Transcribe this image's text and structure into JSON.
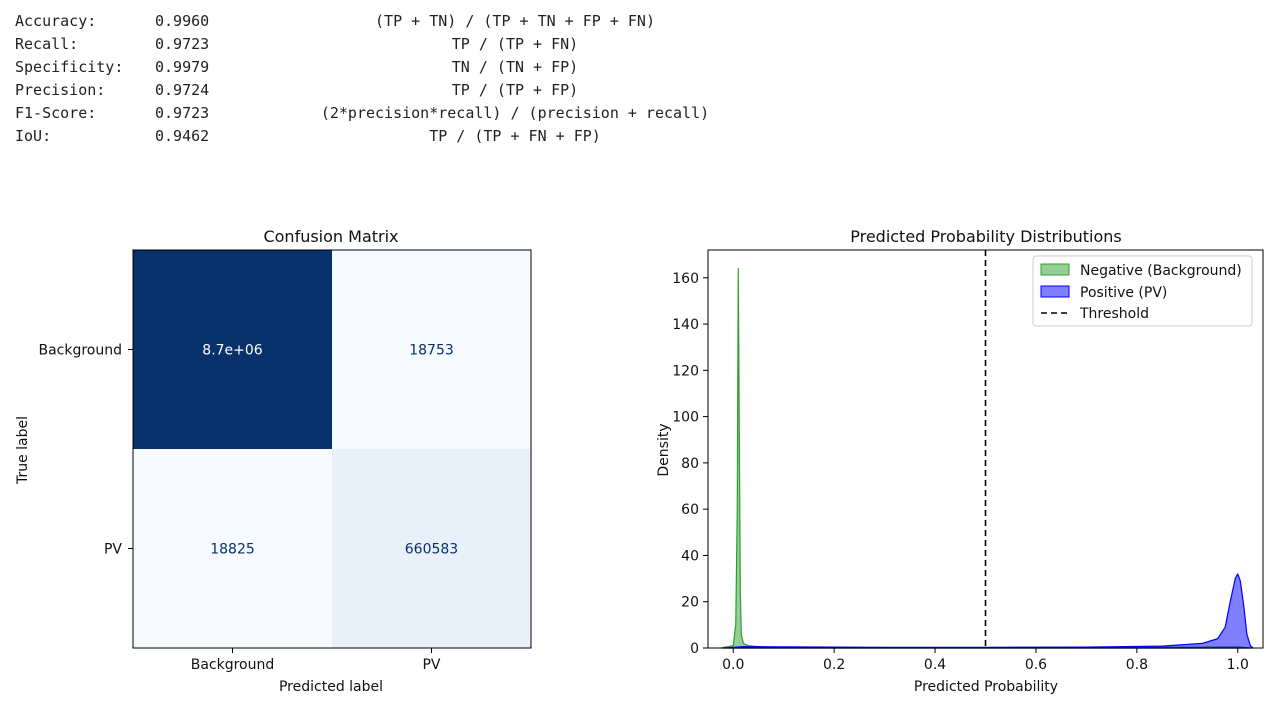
{
  "metrics": [
    {
      "name": "Accuracy:",
      "value": "0.9960",
      "formula": "(TP + TN) / (TP + TN + FP + FN)"
    },
    {
      "name": "Recall:",
      "value": "0.9723",
      "formula": "TP / (TP + FN)"
    },
    {
      "name": "Specificity:",
      "value": "0.9979",
      "formula": "TN / (TN + FP)"
    },
    {
      "name": "Precision:",
      "value": "0.9724",
      "formula": "TP / (TP + FP)"
    },
    {
      "name": "F1-Score:",
      "value": "0.9723",
      "formula": "(2*precision*recall) / (precision + recall)"
    },
    {
      "name": "IoU:",
      "value": "0.9462",
      "formula": "TP / (TP + FN + FP)"
    }
  ],
  "chart_data": [
    {
      "type": "heatmap",
      "title": "Confusion Matrix",
      "xlabel": "Predicted label",
      "ylabel": "True label",
      "x_categories": [
        "Background",
        "PV"
      ],
      "y_categories": [
        "Background",
        "PV"
      ],
      "values": [
        [
          8700000,
          18753
        ],
        [
          18825,
          660583
        ]
      ],
      "cell_labels": [
        [
          "8.7e+06",
          "18753"
        ],
        [
          "18825",
          "660583"
        ]
      ],
      "colormap": "Blues",
      "colors": {
        "dark": "#08306b",
        "light": "#f7fbff",
        "mid_light": "#e8f0fa"
      }
    },
    {
      "type": "area",
      "title": "Predicted Probability Distributions",
      "xlabel": "Predicted Probability",
      "ylabel": "Density",
      "xlim": [
        -0.05,
        1.05
      ],
      "ylim": [
        0,
        172
      ],
      "xticks": [
        0.0,
        0.2,
        0.4,
        0.6,
        0.8,
        1.0
      ],
      "yticks": [
        0,
        20,
        40,
        60,
        80,
        100,
        120,
        140,
        160
      ],
      "legend_position": "top-right",
      "series": [
        {
          "name": "Negative (Background)",
          "color": "#2ca02c",
          "x": [
            -0.025,
            0.0,
            0.005,
            0.008,
            0.01,
            0.012,
            0.014,
            0.016,
            0.02,
            0.03,
            0.06,
            0.2,
            0.5,
            0.8,
            1.0,
            1.025
          ],
          "y": [
            0,
            1,
            10,
            60,
            164,
            95,
            25,
            6,
            2,
            1,
            0.4,
            0.2,
            0.2,
            0.2,
            0.5,
            0
          ]
        },
        {
          "name": "Positive (PV)",
          "color": "#0000ff",
          "x": [
            -0.02,
            0.0,
            0.02,
            0.1,
            0.3,
            0.5,
            0.7,
            0.85,
            0.93,
            0.96,
            0.975,
            0.985,
            0.995,
            1.0,
            1.005,
            1.012,
            1.018,
            1.025,
            1.03
          ],
          "y": [
            0,
            0.3,
            0.6,
            0.5,
            0.3,
            0.3,
            0.4,
            0.8,
            2,
            4,
            9,
            20,
            30,
            32,
            29,
            18,
            6,
            1,
            0
          ]
        }
      ],
      "threshold": {
        "name": "Threshold",
        "x": 0.5
      }
    }
  ]
}
